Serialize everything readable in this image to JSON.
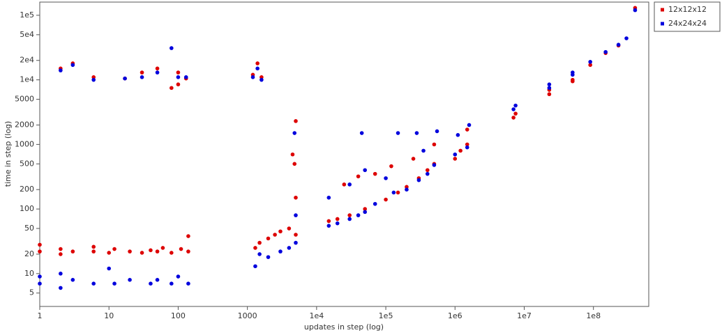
{
  "chart_data": {
    "type": "scatter",
    "x_label": "updates in step (log)",
    "y_label": "time in step (log)",
    "x_log": true,
    "y_log": true,
    "grid": false,
    "legend": "outside-top-right",
    "xlim": [
      1,
      630000000
    ],
    "ylim": [
      3.1,
      160000
    ],
    "xticks": [
      1,
      10,
      100,
      1000,
      {
        "value": 10000,
        "label": "1e4"
      },
      {
        "value": 100000,
        "label": "1e5"
      },
      {
        "value": 1000000,
        "label": "1e6"
      },
      {
        "value": 10000000,
        "label": "1e7"
      },
      {
        "value": 100000000,
        "label": "1e8"
      }
    ],
    "yticks": [
      5,
      10,
      20,
      50,
      100,
      200,
      500,
      1000,
      2000,
      5000,
      {
        "value": 10000,
        "label": "1e4"
      },
      {
        "value": 20000,
        "label": "2e4"
      },
      {
        "value": 50000,
        "label": "5e4"
      },
      {
        "value": 100000,
        "label": "1e5"
      }
    ],
    "series": [
      {
        "name": "12x12x12",
        "color": "#dd0000",
        "x": [
          1,
          1,
          2,
          2,
          2,
          3,
          3,
          6,
          6,
          6,
          10,
          12,
          17,
          20,
          30,
          30,
          40,
          50,
          50,
          60,
          80,
          80,
          100,
          100,
          110,
          130,
          140,
          140,
          1200,
          1300,
          1400,
          1500,
          1600,
          2000,
          2500,
          3000,
          4000,
          4500,
          4800,
          5000,
          5000,
          5000,
          15000,
          20000,
          25000,
          30000,
          40000,
          50000,
          70000,
          100000,
          120000,
          150000,
          200000,
          250000,
          300000,
          400000,
          500000,
          500000,
          1000000,
          1200000,
          1500000,
          1500000,
          7000000,
          7500000,
          23000000,
          23000000,
          50000000,
          50000000,
          90000000,
          150000000,
          230000000,
          400000000
        ],
        "values": [
          22,
          28,
          20,
          24,
          15000,
          18000,
          22,
          11000,
          22,
          26,
          21,
          24,
          10500,
          22,
          13000,
          21,
          23,
          15000,
          22,
          25,
          7500,
          21,
          13000,
          8500,
          24,
          10500,
          22,
          38,
          12000,
          25,
          18000,
          30,
          11000,
          35,
          40,
          45,
          50,
          700,
          500,
          2300,
          150,
          40,
          65,
          70,
          240,
          80,
          320,
          100,
          350,
          140,
          460,
          180,
          220,
          600,
          300,
          400,
          500,
          1000,
          600,
          800,
          1000,
          1700,
          2600,
          3000,
          6000,
          7000,
          9500,
          10000,
          17000,
          26000,
          34000,
          130000
        ]
      },
      {
        "name": "24x24x24",
        "color": "#0000dd",
        "x": [
          1,
          1,
          2,
          2,
          2,
          3,
          3,
          6,
          6,
          10,
          12,
          17,
          20,
          30,
          40,
          50,
          50,
          80,
          80,
          100,
          100,
          130,
          140,
          1200,
          1300,
          1400,
          1500,
          1600,
          2000,
          3000,
          4000,
          4800,
          5000,
          5000,
          15000,
          15000,
          20000,
          30000,
          30000,
          40000,
          45000,
          50000,
          50000,
          70000,
          100000,
          130000,
          150000,
          200000,
          280000,
          300000,
          350000,
          400000,
          500000,
          550000,
          1000000,
          1100000,
          1500000,
          1600000,
          7000000,
          7500000,
          23000000,
          23000000,
          50000000,
          50000000,
          90000000,
          150000000,
          230000000,
          300000000,
          400000000
        ],
        "values": [
          7,
          9,
          6,
          10,
          14000,
          17000,
          8,
          10000,
          7,
          12,
          7,
          10500,
          8,
          11000,
          7,
          13000,
          8,
          31000,
          7,
          11000,
          9,
          11000,
          7,
          11000,
          13,
          15000,
          20,
          10000,
          18,
          22,
          25,
          1500,
          80,
          30,
          55,
          150,
          60,
          70,
          240,
          80,
          1500,
          90,
          400,
          120,
          300,
          180,
          1500,
          200,
          1500,
          280,
          800,
          350,
          480,
          1600,
          700,
          1400,
          900,
          2000,
          3500,
          4000,
          7500,
          8500,
          12000,
          13000,
          19000,
          27000,
          35000,
          44000,
          120000
        ]
      }
    ]
  }
}
